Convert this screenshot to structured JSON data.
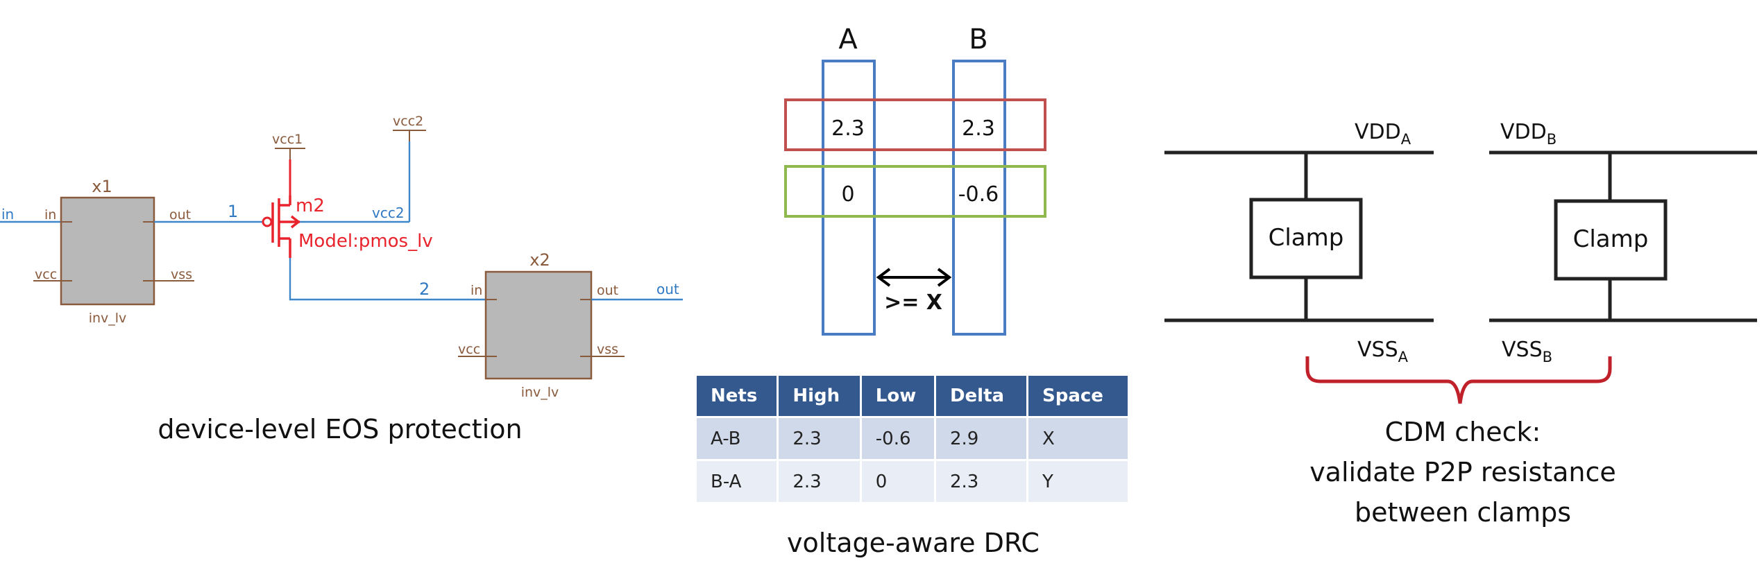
{
  "panel1": {
    "caption": "device-level EOS protection",
    "inv1": {
      "name": "x1",
      "model": "inv_lv",
      "pins": {
        "in": "in",
        "out": "out",
        "vcc": "vcc",
        "vss": "vss"
      }
    },
    "inv2": {
      "name": "x2",
      "model": "inv_lv",
      "pins": {
        "in": "in",
        "out": "out",
        "vcc": "vcc",
        "vss": "vss"
      }
    },
    "transistor": {
      "name": "m2",
      "model": "Model:pmos_lv"
    },
    "nets": {
      "input": "in",
      "output": "out",
      "net1": "1",
      "net2": "2",
      "vcc1": "vcc1",
      "vcc2": "vcc2",
      "vcc2_wire": "vcc2"
    },
    "colors": {
      "wire": "#3d86c8",
      "symbol": "#8a5a3c",
      "highlight": "#e8232c",
      "body": "#b8b8b8"
    }
  },
  "panel2": {
    "caption": "voltage-aware DRC",
    "column_labels": [
      "A",
      "B"
    ],
    "high_values": [
      "2.3",
      "2.3"
    ],
    "low_values": [
      "0",
      "-0.6"
    ],
    "spacing_label": ">= X",
    "table": {
      "headers": [
        "Nets",
        "High",
        "Low",
        "Delta",
        "Space"
      ],
      "rows": [
        [
          "A-B",
          "2.3",
          "-0.6",
          "2.9",
          "X"
        ],
        [
          "B-A",
          "2.3",
          "0",
          "2.3",
          "Y"
        ]
      ]
    },
    "colors": {
      "column": "#4a7cc4",
      "high_band": "#c0504d",
      "low_band": "#8fb84f",
      "header": "#33598f"
    }
  },
  "panel3": {
    "caption_lines": [
      "CDM check:",
      "validate P2P resistance",
      "between clamps"
    ],
    "left": {
      "vdd": "VDD",
      "vdd_sub": "A",
      "vss": "VSS",
      "vss_sub": "A",
      "clamp": "Clamp"
    },
    "right": {
      "vdd": "VDD",
      "vdd_sub": "B",
      "vss": "VSS",
      "vss_sub": "B",
      "clamp": "Clamp"
    },
    "colors": {
      "brace": "#c0202a",
      "rail": "#222222"
    }
  }
}
